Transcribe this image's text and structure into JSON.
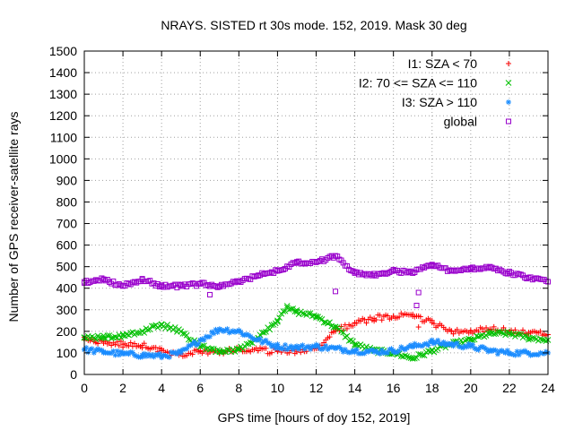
{
  "chart_data": {
    "type": "scatter",
    "title": "NRAYS. SISTED rt 30s mode. 152, 2019. Mask 30 deg",
    "xlabel": "GPS time [hours of doy 152, 2019]",
    "ylabel": "Number of GPS receiver-satellite rays",
    "xlim": [
      0,
      24
    ],
    "ylim": [
      0,
      1500
    ],
    "xticks": [
      0,
      2,
      4,
      6,
      8,
      10,
      12,
      14,
      16,
      18,
      20,
      22,
      24
    ],
    "yticks": [
      0,
      100,
      200,
      300,
      400,
      500,
      600,
      700,
      800,
      900,
      1000,
      1100,
      1200,
      1300,
      1400,
      1500
    ],
    "grid": true,
    "legend_position": "top-right",
    "series": [
      {
        "name": "I1: SZA < 70",
        "marker": "+",
        "color": "#ff0000",
        "x": [
          0,
          1,
          2,
          3,
          4,
          5,
          6,
          7,
          8,
          9,
          10,
          11,
          12,
          13,
          14,
          15,
          16,
          17,
          18,
          19,
          20,
          21,
          22,
          23,
          24
        ],
        "y": [
          160,
          145,
          140,
          135,
          110,
          95,
          110,
          100,
          115,
          110,
          110,
          105,
          120,
          200,
          240,
          260,
          270,
          270,
          240,
          200,
          200,
          210,
          200,
          195,
          185
        ]
      },
      {
        "name": "I2: 70 <= SZA <= 110",
        "marker": "x",
        "color": "#00c000",
        "x": [
          0,
          1,
          2,
          3,
          4,
          5,
          6,
          7,
          8,
          9,
          10,
          10.5,
          11,
          12,
          13,
          14,
          15,
          16,
          17,
          18,
          19,
          20,
          21,
          22,
          23,
          24
        ],
        "y": [
          170,
          170,
          180,
          200,
          230,
          200,
          130,
          110,
          115,
          170,
          250,
          310,
          290,
          270,
          220,
          140,
          110,
          100,
          75,
          110,
          140,
          160,
          190,
          190,
          170,
          160
        ]
      },
      {
        "name": "I3: SZA > 110",
        "marker": "*",
        "color": "#1a8cff",
        "x": [
          0,
          1,
          2,
          3,
          4,
          5,
          6,
          7,
          8,
          9,
          10,
          11,
          12,
          13,
          14,
          15,
          16,
          17,
          18,
          19,
          20,
          21,
          22,
          23,
          24
        ],
        "y": [
          115,
          105,
          95,
          90,
          85,
          100,
          160,
          210,
          200,
          160,
          130,
          125,
          130,
          120,
          110,
          105,
          110,
          130,
          150,
          140,
          130,
          110,
          100,
          100,
          100
        ]
      },
      {
        "name": "global",
        "marker": "square",
        "color": "#9900cc",
        "x": [
          0,
          1,
          2,
          3,
          4,
          5,
          6,
          7,
          8,
          9,
          10,
          11,
          12,
          13,
          14,
          15,
          16,
          17,
          18,
          19,
          20,
          21,
          22,
          23,
          24
        ],
        "y": [
          430,
          440,
          410,
          440,
          410,
          410,
          420,
          410,
          430,
          460,
          480,
          520,
          520,
          550,
          470,
          460,
          480,
          470,
          510,
          480,
          490,
          500,
          470,
          450,
          430
        ]
      }
    ],
    "outliers": [
      {
        "series": "global",
        "x": 13.0,
        "y": 385
      },
      {
        "series": "global",
        "x": 17.2,
        "y": 320
      },
      {
        "series": "global",
        "x": 17.3,
        "y": 380
      },
      {
        "series": "global",
        "x": 6.5,
        "y": 370
      },
      {
        "series": "I1: SZA < 70",
        "x": 17.3,
        "y": 220
      }
    ]
  }
}
